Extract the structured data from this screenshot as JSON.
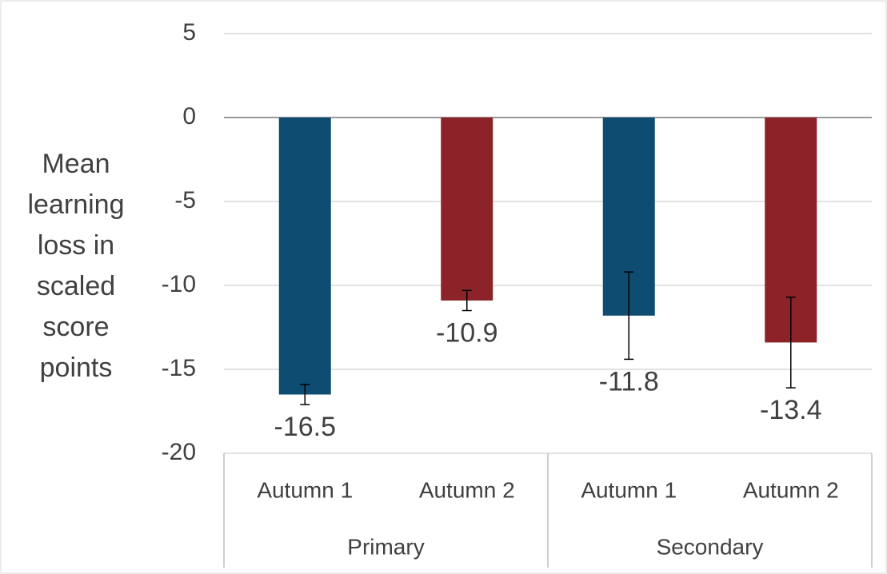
{
  "chart_data": {
    "type": "bar",
    "y_label": "Mean learning loss in scaled score points",
    "categories": [
      "Autumn 1",
      "Autumn 2",
      "Autumn 1",
      "Autumn 2"
    ],
    "groups": [
      "Primary",
      "Secondary"
    ],
    "values": [
      -16.5,
      -10.9,
      -11.8,
      -13.4
    ],
    "errors": [
      0.6,
      0.6,
      2.6,
      2.7
    ],
    "colors": [
      "#0f4c72",
      "#8b2329",
      "#0f4c72",
      "#8b2329"
    ],
    "ylim": [
      -20,
      5
    ],
    "yticks": [
      -20,
      -15,
      -10,
      -5,
      0,
      5
    ],
    "grid": true
  }
}
